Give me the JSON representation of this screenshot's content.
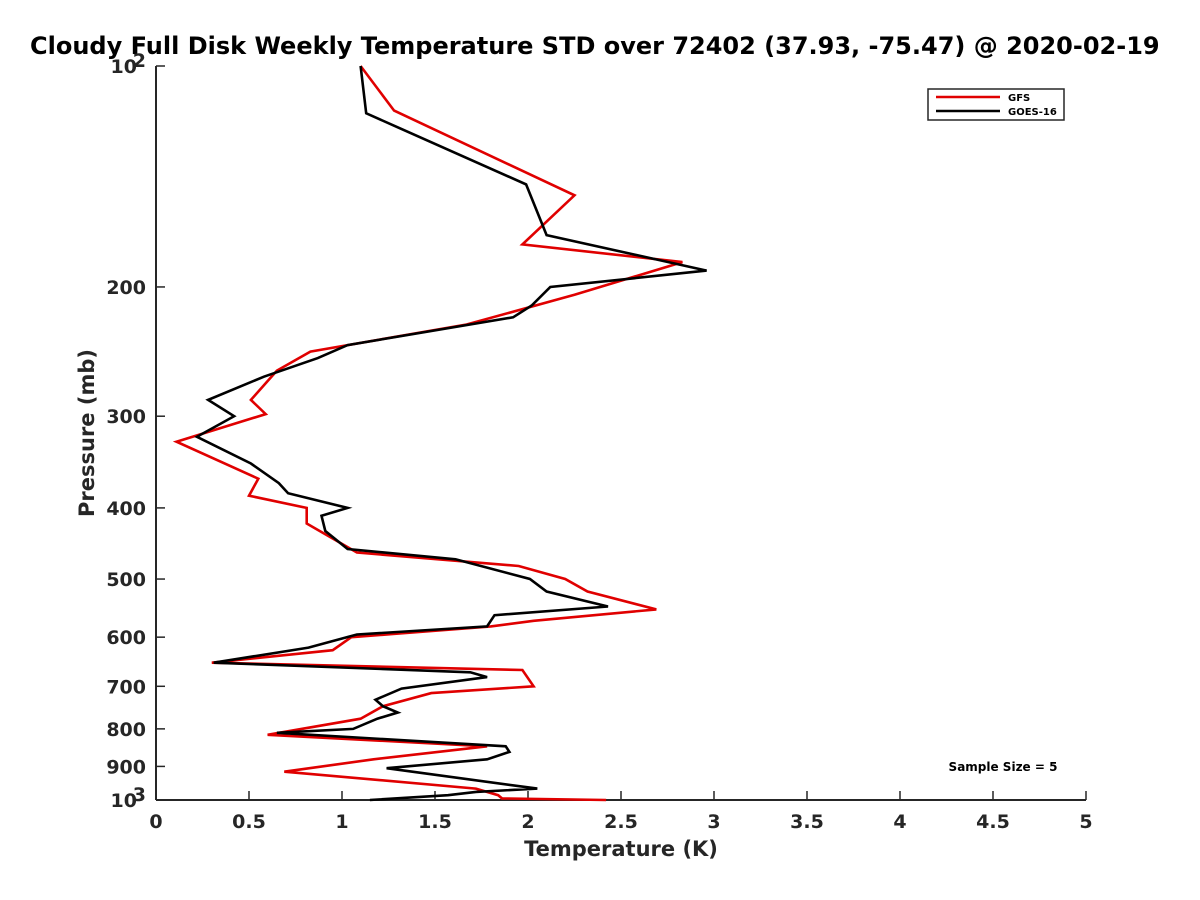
{
  "chart_data": {
    "type": "line",
    "title": "Cloudy Full Disk Weekly Temperature STD over 72402 (37.93, -75.47) @ 2020-02-19",
    "xlabel": "Temperature (K)",
    "ylabel": "Pressure (mb)",
    "xlim": [
      0,
      5
    ],
    "ylim": [
      100,
      1000
    ],
    "y_scale": "log",
    "y_reversed": true,
    "x_ticks": [
      "0",
      "0.5",
      "1",
      "1.5",
      "2",
      "2.5",
      "3",
      "3.5",
      "4",
      "4.5",
      "5"
    ],
    "y_ticks": [
      {
        "value": 100,
        "base": "10",
        "exp": "2"
      },
      {
        "value": 200,
        "label": "200"
      },
      {
        "value": 300,
        "label": "300"
      },
      {
        "value": 400,
        "label": "400"
      },
      {
        "value": 500,
        "label": "500"
      },
      {
        "value": 600,
        "label": "600"
      },
      {
        "value": 700,
        "label": "700"
      },
      {
        "value": 800,
        "label": "800"
      },
      {
        "value": 900,
        "label": "900"
      },
      {
        "value": 1000,
        "base": "10",
        "exp": "3"
      }
    ],
    "legend_position": "top-right",
    "annotation": "Sample Size = 5",
    "grid": false,
    "series": [
      {
        "name": "GFS",
        "color": "#e00000",
        "points": [
          [
            1.1,
            100
          ],
          [
            1.28,
            115
          ],
          [
            2.25,
            150
          ],
          [
            1.97,
            175
          ],
          [
            2.83,
            185
          ],
          [
            2.25,
            205
          ],
          [
            1.67,
            225
          ],
          [
            0.83,
            245
          ],
          [
            0.65,
            260
          ],
          [
            0.51,
            285
          ],
          [
            0.59,
            298
          ],
          [
            0.11,
            325
          ],
          [
            0.55,
            365
          ],
          [
            0.5,
            385
          ],
          [
            0.81,
            400
          ],
          [
            0.81,
            420
          ],
          [
            1.08,
            460
          ],
          [
            1.95,
            480
          ],
          [
            2.2,
            500
          ],
          [
            2.32,
            520
          ],
          [
            2.69,
            550
          ],
          [
            2.03,
            570
          ],
          [
            1.8,
            580
          ],
          [
            1.05,
            600
          ],
          [
            0.95,
            625
          ],
          [
            0.3,
            650
          ],
          [
            1.97,
            665
          ],
          [
            2.03,
            700
          ],
          [
            1.48,
            715
          ],
          [
            1.22,
            745
          ],
          [
            1.1,
            775
          ],
          [
            0.6,
            815
          ],
          [
            1.78,
            845
          ],
          [
            1.17,
            880
          ],
          [
            0.69,
            915
          ],
          [
            1.72,
            965
          ],
          [
            1.84,
            985
          ],
          [
            1.86,
            995
          ],
          [
            2.42,
            1000
          ]
        ]
      },
      {
        "name": "GOES-16",
        "color": "#000000",
        "points": [
          [
            1.1,
            100
          ],
          [
            1.13,
            116
          ],
          [
            1.99,
            145
          ],
          [
            2.1,
            170
          ],
          [
            2.96,
            190
          ],
          [
            2.12,
            200
          ],
          [
            2.02,
            212
          ],
          [
            1.92,
            220
          ],
          [
            1.03,
            240
          ],
          [
            0.87,
            250
          ],
          [
            0.58,
            265
          ],
          [
            0.28,
            285
          ],
          [
            0.42,
            300
          ],
          [
            0.22,
            320
          ],
          [
            0.51,
            348
          ],
          [
            0.66,
            370
          ],
          [
            0.71,
            382
          ],
          [
            1.03,
            400
          ],
          [
            0.89,
            410
          ],
          [
            0.91,
            430
          ],
          [
            1.03,
            455
          ],
          [
            1.61,
            470
          ],
          [
            2.01,
            500
          ],
          [
            2.1,
            520
          ],
          [
            2.43,
            545
          ],
          [
            1.82,
            560
          ],
          [
            1.78,
            580
          ],
          [
            1.08,
            595
          ],
          [
            0.82,
            620
          ],
          [
            0.31,
            650
          ],
          [
            1.69,
            670
          ],
          [
            1.78,
            680
          ],
          [
            1.32,
            705
          ],
          [
            1.18,
            730
          ],
          [
            1.22,
            745
          ],
          [
            1.3,
            760
          ],
          [
            1.19,
            775
          ],
          [
            1.06,
            800
          ],
          [
            0.65,
            810
          ],
          [
            1.88,
            845
          ],
          [
            1.9,
            860
          ],
          [
            1.78,
            880
          ],
          [
            1.24,
            905
          ],
          [
            2.05,
            965
          ],
          [
            1.72,
            975
          ],
          [
            1.57,
            985
          ],
          [
            1.15,
            1000
          ]
        ]
      }
    ]
  }
}
